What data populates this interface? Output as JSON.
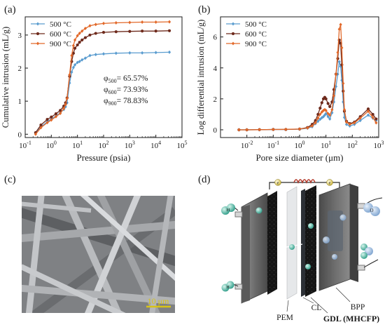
{
  "figure": {
    "panel_labels": [
      "(a)",
      "(b)",
      "(c)",
      "(d)"
    ],
    "colors": {
      "t500": "#5a9ccf",
      "t600": "#6e2a1c",
      "t900": "#e2692a",
      "axis": "#1a1a1a",
      "sem_bg": "#8a8c8e",
      "scale_bar": "#d8c317"
    }
  },
  "chart_data": [
    {
      "id": "a",
      "type": "line",
      "xlabel": "Pressure (psia)",
      "ylabel": "Cumulative intrusion (mL/g)",
      "x_scale": "log",
      "xlim": [
        0.1,
        100000
      ],
      "ylim": [
        -0.1,
        3.55
      ],
      "x_ticks": [
        {
          "v": 0.1,
          "base": "10",
          "exp": "-1"
        },
        {
          "v": 1,
          "base": "10",
          "exp": "0"
        },
        {
          "v": 10,
          "base": "10",
          "exp": "1"
        },
        {
          "v": 100,
          "base": "10",
          "exp": "2"
        },
        {
          "v": 1000,
          "base": "10",
          "exp": "3"
        },
        {
          "v": 10000,
          "base": "10",
          "exp": "4"
        },
        {
          "v": 100000,
          "base": "10",
          "exp": "5"
        }
      ],
      "y_ticks": [
        {
          "v": 0,
          "label": "0"
        },
        {
          "v": 1,
          "label": "1"
        },
        {
          "v": 2,
          "label": "2"
        },
        {
          "v": 3,
          "label": "3"
        }
      ],
      "legend": {
        "placement": "top-left"
      },
      "annotations": [
        {
          "sub": "500",
          "value": "= 65.57%"
        },
        {
          "sub": "600",
          "value": "= 73.93%"
        },
        {
          "sub": "900",
          "value": "= 78.83%"
        }
      ],
      "annotation_symbol": "φ",
      "series": [
        {
          "name": "500 °C",
          "color_key": "t500",
          "marker": "diamond",
          "x": [
            0.25,
            0.4,
            0.7,
            1,
            1.5,
            2.2,
            3,
            3.5,
            4,
            5,
            6,
            7,
            8,
            10,
            12,
            15,
            20,
            30,
            50,
            100,
            300,
            1000,
            3000,
            10000,
            33000
          ],
          "y": [
            0.03,
            0.22,
            0.38,
            0.46,
            0.55,
            0.65,
            0.75,
            0.83,
            0.95,
            1.55,
            1.88,
            2.02,
            2.1,
            2.17,
            2.2,
            2.25,
            2.3,
            2.38,
            2.41,
            2.43,
            2.45,
            2.46,
            2.46,
            2.47,
            2.48
          ]
        },
        {
          "name": "600 °C",
          "color_key": "t600",
          "marker": "circle",
          "x": [
            0.25,
            0.4,
            0.7,
            1,
            1.5,
            2.2,
            3,
            3.5,
            4,
            5,
            6,
            7,
            8,
            10,
            12,
            15,
            20,
            30,
            50,
            100,
            300,
            1000,
            3000,
            10000,
            33000
          ],
          "y": [
            0.05,
            0.28,
            0.45,
            0.52,
            0.62,
            0.72,
            0.85,
            0.95,
            1.1,
            1.75,
            2.2,
            2.45,
            2.6,
            2.7,
            2.78,
            2.85,
            2.92,
            3.0,
            3.05,
            3.08,
            3.1,
            3.11,
            3.12,
            3.12,
            3.13
          ]
        },
        {
          "name": "900 °C",
          "color_key": "t900",
          "marker": "diamond",
          "x": [
            0.25,
            0.4,
            0.7,
            1,
            1.5,
            2.2,
            3,
            3.5,
            4,
            5,
            6,
            7,
            8,
            10,
            12,
            15,
            20,
            30,
            50,
            100,
            300,
            1000,
            3000,
            10000,
            33000
          ],
          "y": [
            0.0,
            0.2,
            0.35,
            0.43,
            0.53,
            0.63,
            0.78,
            0.9,
            1.08,
            1.8,
            2.38,
            2.68,
            2.85,
            2.98,
            3.05,
            3.12,
            3.2,
            3.28,
            3.32,
            3.35,
            3.37,
            3.38,
            3.39,
            3.39,
            3.4
          ]
        }
      ]
    },
    {
      "id": "b",
      "type": "line",
      "xlabel": "Pore size diameter (μm)",
      "ylabel": "Log differential intrusion (mL/g)",
      "x_scale": "log",
      "xlim": [
        0.001,
        1000
      ],
      "ylim": [
        -0.5,
        7.3
      ],
      "x_ticks": [
        {
          "v": 0.01,
          "base": "10",
          "exp": "-2"
        },
        {
          "v": 0.1,
          "base": "10",
          "exp": "-1"
        },
        {
          "v": 1,
          "base": "10",
          "exp": "0"
        },
        {
          "v": 10,
          "base": "10",
          "exp": "1"
        },
        {
          "v": 100,
          "base": "10",
          "exp": "2"
        },
        {
          "v": 1000,
          "base": "10",
          "exp": "3"
        }
      ],
      "y_ticks": [
        {
          "v": 0,
          "label": "0"
        },
        {
          "v": 2,
          "label": "2"
        },
        {
          "v": 4,
          "label": "4"
        },
        {
          "v": 6,
          "label": "6"
        }
      ],
      "legend": {
        "placement": "top-left"
      },
      "series": [
        {
          "name": "500 °C",
          "color_key": "t500",
          "marker": "diamond",
          "x": [
            0.005,
            0.01,
            0.03,
            0.1,
            0.3,
            1,
            2,
            3,
            4,
            5,
            6,
            7,
            8,
            9,
            10,
            12,
            14,
            17,
            20,
            24,
            28,
            32,
            36,
            40,
            45,
            50,
            60,
            80,
            120,
            200,
            400,
            600,
            800
          ],
          "y": [
            0.0,
            0.0,
            0.01,
            0.02,
            0.02,
            0.04,
            0.1,
            0.2,
            0.4,
            0.55,
            0.68,
            0.78,
            0.85,
            0.95,
            1.05,
            0.85,
            0.7,
            1.1,
            1.8,
            2.8,
            3.6,
            4.4,
            4.1,
            3.2,
            1.8,
            0.8,
            0.35,
            0.25,
            0.35,
            0.6,
            0.95,
            0.75,
            0.6
          ]
        },
        {
          "name": "600 °C",
          "color_key": "t600",
          "marker": "circle",
          "x": [
            0.005,
            0.01,
            0.03,
            0.1,
            0.3,
            1,
            2,
            3,
            4,
            5,
            6,
            7,
            8,
            9,
            10,
            12,
            14,
            17,
            20,
            24,
            28,
            32,
            36,
            40,
            45,
            50,
            60,
            80,
            120,
            200,
            400,
            600,
            800
          ],
          "y": [
            0.0,
            0.0,
            0.01,
            0.02,
            0.02,
            0.05,
            0.15,
            0.35,
            0.6,
            1.0,
            1.4,
            1.75,
            2.0,
            2.1,
            2.0,
            1.7,
            1.5,
            1.8,
            2.6,
            3.6,
            4.6,
            5.8,
            5.6,
            4.2,
            2.5,
            1.2,
            0.55,
            0.4,
            0.5,
            0.85,
            1.35,
            1.0,
            0.7
          ]
        },
        {
          "name": "900 °C",
          "color_key": "t900",
          "marker": "diamond",
          "x": [
            0.005,
            0.01,
            0.03,
            0.1,
            0.3,
            1,
            2,
            3,
            4,
            5,
            6,
            7,
            8,
            9,
            10,
            12,
            14,
            17,
            20,
            24,
            28,
            32,
            36,
            40,
            45,
            50,
            60,
            80,
            120,
            200,
            400,
            600,
            800
          ],
          "y": [
            0.0,
            0.0,
            0.01,
            0.02,
            0.03,
            0.05,
            0.12,
            0.25,
            0.45,
            0.75,
            1.0,
            1.15,
            1.25,
            1.3,
            1.25,
            1.05,
            0.95,
            1.3,
            2.2,
            3.6,
            5.0,
            6.5,
            6.8,
            5.3,
            3.0,
            1.3,
            0.5,
            0.35,
            0.45,
            0.75,
            1.2,
            0.8,
            0.45
          ]
        }
      ]
    }
  ],
  "sem": {
    "scale_label": "10 μm"
  },
  "schematic": {
    "labels": {
      "pem": "PEM",
      "cl": "CL",
      "gdl": "GDL (MHCFP)",
      "bpp": "BPP"
    },
    "species": {
      "electron": "e",
      "proton": "H",
      "oxygen": "O",
      "hydrogen": "H",
      "oxygen_sub": "2",
      "hydrogen_sub": "2",
      "water": "H",
      "water_sub": "2",
      "water_tail": "O"
    }
  }
}
